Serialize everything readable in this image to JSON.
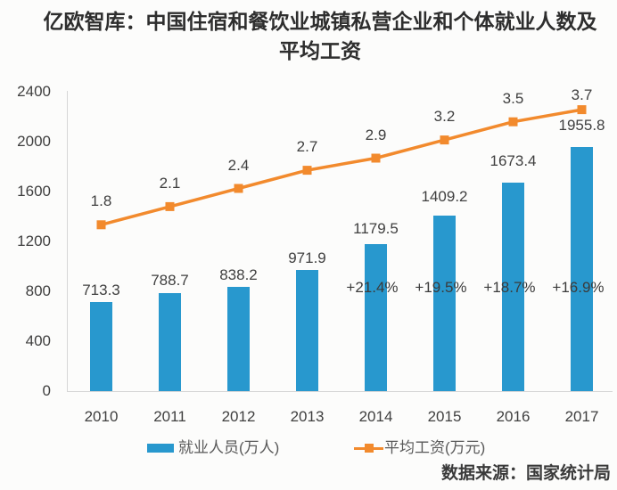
{
  "title": {
    "line1": "亿欧智库：中国住宿和餐饮业城镇私营企业和个体就业人数及",
    "line2": "平均工资",
    "full": "亿欧智库：中国住宿和餐饮业城镇私营企业和个体就业人数及平均工资"
  },
  "source": "数据来源：国家统计局",
  "colors": {
    "bar": "#2898ce",
    "line": "#f28a2d",
    "axis": "#d6d6d6",
    "label_text": "#3f3f3f",
    "title_text": "#2e2e2e",
    "legend_text": "#595959"
  },
  "legend": {
    "items": [
      {
        "label": "就业人员(万人)",
        "marker": "bar"
      },
      {
        "label": "平均工资(万元)",
        "marker": "line"
      }
    ]
  },
  "chart_data": {
    "type": "combo-bar-line",
    "title": "亿欧智库：中国住宿和餐饮业城镇私营企业和个体就业人数及平均工资",
    "categories": [
      "2010",
      "2011",
      "2012",
      "2013",
      "2014",
      "2015",
      "2016",
      "2017"
    ],
    "series": [
      {
        "name": "就业人员(万人)",
        "type": "bar",
        "axis": "left",
        "color": "#2898ce",
        "values": [
          713.3,
          788.7,
          838.2,
          971.9,
          1179.5,
          1409.2,
          1673.4,
          1955.8
        ]
      },
      {
        "name": "平均工资(万元)",
        "type": "line",
        "axis": "hidden-right",
        "color": "#f28a2d",
        "values": [
          1.8,
          2.1,
          2.4,
          2.7,
          2.9,
          3.2,
          3.5,
          3.7
        ]
      }
    ],
    "annotations": [
      {
        "category": "2014",
        "text": "+21.4%"
      },
      {
        "category": "2015",
        "text": "+19.5%"
      },
      {
        "category": "2016",
        "text": "+18.7%"
      },
      {
        "category": "2017",
        "text": "+16.9%"
      }
    ],
    "y_axis": {
      "min": 0,
      "max": 2400,
      "step": 400,
      "ticks": [
        0,
        400,
        800,
        1200,
        1600,
        2000,
        2400
      ]
    },
    "xlabel": "",
    "ylabel": "",
    "grid": false,
    "legend_position": "bottom",
    "source": "数据来源：国家统计局"
  }
}
